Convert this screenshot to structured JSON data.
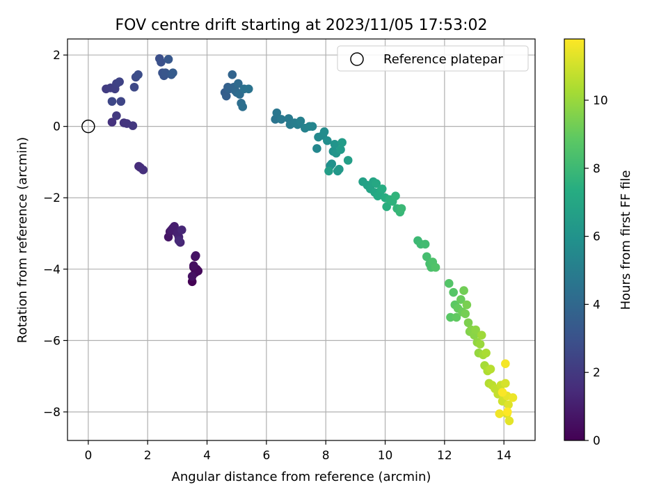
{
  "chart_data": {
    "type": "scatter",
    "title": "FOV centre drift starting at 2023/11/05 17:53:02",
    "xlabel": "Angular distance from reference (arcmin)",
    "ylabel": "Rotation from reference (arcmin)",
    "xlim": [
      -0.7,
      15.05
    ],
    "ylim": [
      -8.8,
      2.45
    ],
    "x_ticks": [
      0,
      2,
      4,
      6,
      8,
      10,
      12,
      14
    ],
    "y_ticks": [
      2,
      0,
      -2,
      -4,
      -6,
      -8
    ],
    "x_tick_labels": [
      "0",
      "2",
      "4",
      "6",
      "8",
      "10",
      "12",
      "14"
    ],
    "y_tick_labels": [
      "2",
      "0",
      "−2",
      "−4",
      "−6",
      "−8"
    ],
    "grid": true,
    "legend": {
      "placement": "top-right",
      "entries": [
        "Reference platepar"
      ]
    },
    "reference_point": {
      "x": 0,
      "y": 0
    },
    "colorbar": {
      "label": "Hours from first FF file",
      "colormap": "viridis",
      "range": [
        0,
        11.8
      ],
      "ticks": [
        0,
        2,
        4,
        6,
        8,
        10
      ],
      "tick_labels": [
        "0",
        "2",
        "4",
        "6",
        "8",
        "10"
      ]
    },
    "series": [
      {
        "points": [
          [
            3.5,
            -4.35
          ],
          [
            3.6,
            -4.1
          ],
          [
            3.55,
            -3.95
          ],
          [
            3.7,
            -4.05
          ],
          [
            3.65,
            -4.0
          ],
          [
            3.6,
            -3.65
          ],
          [
            3.55,
            -3.9
          ],
          [
            3.5,
            -4.2
          ],
          [
            3.62,
            -3.62
          ],
          [
            2.7,
            -3.1
          ],
          [
            2.75,
            -2.95
          ],
          [
            2.85,
            -2.85
          ],
          [
            2.8,
            -2.9
          ],
          [
            2.9,
            -2.8
          ],
          [
            3.0,
            -3.0
          ],
          [
            3.05,
            -3.1
          ],
          [
            3.1,
            -3.25
          ],
          [
            3.15,
            -2.9
          ],
          [
            3.05,
            -3.2
          ],
          [
            1.7,
            -1.12
          ],
          [
            1.75,
            -1.15
          ],
          [
            1.85,
            -1.22
          ],
          [
            0.8,
            0.12
          ],
          [
            1.2,
            0.1
          ],
          [
            1.3,
            0.08
          ],
          [
            1.5,
            0.02
          ],
          [
            0.95,
            0.3
          ],
          [
            0.6,
            1.05
          ],
          [
            0.75,
            1.08
          ],
          [
            0.9,
            1.05
          ],
          [
            0.95,
            1.2
          ],
          [
            1.05,
            1.25
          ],
          [
            1.1,
            0.7
          ],
          [
            0.8,
            0.7
          ],
          [
            1.55,
            1.1
          ],
          [
            1.6,
            1.38
          ],
          [
            1.68,
            1.45
          ],
          [
            2.4,
            1.9
          ],
          [
            2.45,
            1.8
          ],
          [
            2.5,
            1.5
          ],
          [
            2.55,
            1.42
          ],
          [
            2.6,
            1.5
          ],
          [
            2.7,
            1.88
          ],
          [
            2.8,
            1.45
          ],
          [
            2.85,
            1.5
          ],
          [
            4.6,
            0.95
          ],
          [
            4.65,
            0.85
          ],
          [
            4.7,
            1.1
          ],
          [
            4.75,
            1.05
          ],
          [
            4.85,
            1.45
          ],
          [
            4.9,
            1.1
          ],
          [
            4.95,
            1.0
          ],
          [
            5.0,
            0.95
          ],
          [
            5.05,
            1.2
          ],
          [
            5.1,
            0.9
          ],
          [
            5.15,
            0.65
          ],
          [
            5.2,
            0.55
          ],
          [
            5.25,
            1.05
          ],
          [
            5.4,
            1.05
          ],
          [
            6.3,
            0.2
          ],
          [
            6.35,
            0.38
          ],
          [
            6.5,
            0.2
          ],
          [
            6.75,
            0.22
          ],
          [
            6.8,
            0.05
          ],
          [
            6.95,
            0.1
          ],
          [
            7.05,
            0.05
          ],
          [
            7.15,
            0.15
          ],
          [
            7.3,
            -0.05
          ],
          [
            7.45,
            0.0
          ],
          [
            7.55,
            0.0
          ],
          [
            7.7,
            -0.62
          ],
          [
            7.75,
            -0.3
          ],
          [
            7.9,
            -0.25
          ],
          [
            7.95,
            -0.15
          ],
          [
            8.05,
            -0.4
          ],
          [
            8.15,
            -1.1
          ],
          [
            8.2,
            -1.05
          ],
          [
            8.25,
            -0.7
          ],
          [
            8.3,
            -0.5
          ],
          [
            8.35,
            -0.75
          ],
          [
            8.4,
            -1.25
          ],
          [
            8.45,
            -1.2
          ],
          [
            8.5,
            -0.65
          ],
          [
            8.55,
            -0.45
          ],
          [
            8.1,
            -1.25
          ],
          [
            8.75,
            -0.95
          ],
          [
            9.25,
            -1.55
          ],
          [
            9.4,
            -1.65
          ],
          [
            9.5,
            -1.75
          ],
          [
            9.6,
            -1.55
          ],
          [
            9.65,
            -1.85
          ],
          [
            9.7,
            -1.6
          ],
          [
            9.75,
            -1.95
          ],
          [
            9.85,
            -1.8
          ],
          [
            9.9,
            -1.75
          ],
          [
            10.0,
            -2.0
          ],
          [
            10.05,
            -2.25
          ],
          [
            10.15,
            -2.05
          ],
          [
            10.25,
            -2.1
          ],
          [
            10.35,
            -1.95
          ],
          [
            10.4,
            -2.3
          ],
          [
            10.5,
            -2.4
          ],
          [
            10.55,
            -2.3
          ],
          [
            11.1,
            -3.2
          ],
          [
            11.2,
            -3.3
          ],
          [
            11.35,
            -3.3
          ],
          [
            11.4,
            -3.65
          ],
          [
            11.5,
            -3.85
          ],
          [
            11.55,
            -3.95
          ],
          [
            11.6,
            -3.8
          ],
          [
            11.7,
            -3.95
          ],
          [
            12.15,
            -4.4
          ],
          [
            12.3,
            -4.65
          ],
          [
            12.2,
            -5.35
          ],
          [
            12.35,
            -5.0
          ],
          [
            12.4,
            -5.35
          ],
          [
            12.45,
            -5.1
          ],
          [
            12.55,
            -4.85
          ],
          [
            12.6,
            -5.2
          ],
          [
            12.65,
            -4.6
          ],
          [
            12.7,
            -5.25
          ],
          [
            12.75,
            -5.0
          ],
          [
            12.8,
            -5.5
          ],
          [
            12.85,
            -5.75
          ],
          [
            12.9,
            -5.7
          ],
          [
            13.0,
            -5.85
          ],
          [
            13.05,
            -5.7
          ],
          [
            13.1,
            -6.05
          ],
          [
            13.15,
            -6.35
          ],
          [
            13.2,
            -6.1
          ],
          [
            13.25,
            -5.85
          ],
          [
            13.3,
            -6.4
          ],
          [
            13.35,
            -6.7
          ],
          [
            13.4,
            -6.35
          ],
          [
            13.45,
            -6.85
          ],
          [
            13.5,
            -7.2
          ],
          [
            13.55,
            -6.8
          ],
          [
            13.6,
            -7.25
          ],
          [
            13.7,
            -7.35
          ],
          [
            13.8,
            -7.5
          ],
          [
            13.9,
            -7.25
          ],
          [
            13.95,
            -7.7
          ],
          [
            14.0,
            -7.55
          ],
          [
            14.05,
            -7.2
          ],
          [
            14.1,
            -8.05
          ],
          [
            14.15,
            -7.8
          ],
          [
            14.18,
            -8.25
          ],
          [
            14.1,
            -7.55
          ],
          [
            14.3,
            -7.6
          ],
          [
            13.85,
            -8.05
          ],
          [
            14.05,
            -6.65
          ],
          [
            13.95,
            -7.45
          ],
          [
            14.12,
            -8.0
          ]
        ]
      }
    ]
  }
}
